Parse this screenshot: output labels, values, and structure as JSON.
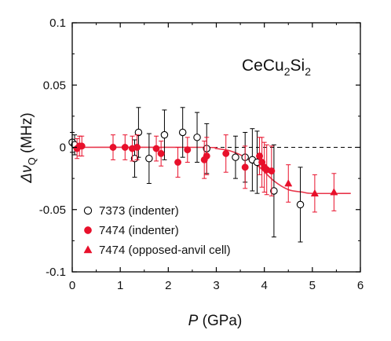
{
  "chart_data": {
    "type": "scatter",
    "title": "CeCu₂Si₂",
    "title_main": "CeCu",
    "title_sub1": "2",
    "title_mid": "Si",
    "title_sub2": "2",
    "xlabel_italic": "P",
    "xlabel_rest": " (GPa)",
    "ylabel_delta": "Δ",
    "ylabel_nu": "ν",
    "ylabel_sub": "Q",
    "ylabel_rest": " (MHz)",
    "xlim": [
      0,
      6
    ],
    "ylim": [
      -0.1,
      0.1
    ],
    "x_ticks": [
      0,
      1,
      2,
      3,
      4,
      5,
      6
    ],
    "y_ticks": [
      -0.1,
      -0.05,
      0,
      0.05,
      0.1
    ],
    "x_tick_labels": [
      "0",
      "1",
      "2",
      "3",
      "4",
      "5",
      "6"
    ],
    "y_tick_labels": [
      "-0.1",
      "-0.05",
      "0",
      "0.05",
      "0.1"
    ],
    "legend_position": "bottom-left",
    "reference_line": {
      "y": 0,
      "style": "dashed",
      "color": "#000000"
    },
    "fit_curve": {
      "color": "#e8354a",
      "points": [
        [
          0,
          0
        ],
        [
          2.7,
          0
        ],
        [
          3.0,
          -0.001
        ],
        [
          3.3,
          -0.003
        ],
        [
          3.6,
          -0.008
        ],
        [
          3.9,
          -0.016
        ],
        [
          4.2,
          -0.027
        ],
        [
          4.5,
          -0.034
        ],
        [
          4.8,
          -0.036
        ],
        [
          5.0,
          -0.037
        ],
        [
          5.8,
          -0.037
        ]
      ]
    },
    "series": [
      {
        "name": "7373 (indenter)",
        "marker": "circle-open",
        "color": "#000000",
        "points": [
          {
            "x": 0.0,
            "y": 0.004,
            "err": 0.008
          },
          {
            "x": 0.05,
            "y": 0.002,
            "err": 0.008
          },
          {
            "x": 1.3,
            "y": -0.009,
            "err": 0.015
          },
          {
            "x": 1.38,
            "y": 0.012,
            "err": 0.02
          },
          {
            "x": 1.6,
            "y": -0.009,
            "err": 0.02
          },
          {
            "x": 1.92,
            "y": 0.01,
            "err": 0.02
          },
          {
            "x": 2.3,
            "y": 0.012,
            "err": 0.02
          },
          {
            "x": 2.6,
            "y": 0.008,
            "err": 0.02
          },
          {
            "x": 2.8,
            "y": -0.001,
            "err": 0.02
          },
          {
            "x": 3.4,
            "y": -0.008,
            "err": 0.017
          },
          {
            "x": 3.6,
            "y": -0.008,
            "err": 0.02
          },
          {
            "x": 3.75,
            "y": -0.01,
            "err": 0.025
          },
          {
            "x": 3.85,
            "y": -0.012,
            "err": 0.025
          },
          {
            "x": 4.2,
            "y": -0.035,
            "err": 0.037
          },
          {
            "x": 4.75,
            "y": -0.046,
            "err": 0.03
          }
        ]
      },
      {
        "name": "7474 (indenter)",
        "marker": "circle-filled",
        "color": "#e8102b",
        "points": [
          {
            "x": 0.1,
            "y": -0.001,
            "err": 0.008
          },
          {
            "x": 0.15,
            "y": 0.001,
            "err": 0.008
          },
          {
            "x": 0.2,
            "y": 0.001,
            "err": 0.008
          },
          {
            "x": 0.85,
            "y": 0.0,
            "err": 0.01
          },
          {
            "x": 1.1,
            "y": 0.0,
            "err": 0.01
          },
          {
            "x": 1.25,
            "y": -0.001,
            "err": 0.01
          },
          {
            "x": 1.35,
            "y": 0.0,
            "err": 0.01
          },
          {
            "x": 1.75,
            "y": -0.001,
            "err": 0.01
          },
          {
            "x": 1.85,
            "y": -0.005,
            "err": 0.01
          },
          {
            "x": 2.2,
            "y": -0.012,
            "err": 0.012
          },
          {
            "x": 2.4,
            "y": -0.002,
            "err": 0.01
          },
          {
            "x": 2.75,
            "y": -0.01,
            "err": 0.015
          },
          {
            "x": 2.8,
            "y": -0.007,
            "err": 0.015
          },
          {
            "x": 3.2,
            "y": -0.005,
            "err": 0.015
          },
          {
            "x": 3.6,
            "y": -0.016,
            "err": 0.017
          },
          {
            "x": 3.9,
            "y": -0.007,
            "err": 0.015
          },
          {
            "x": 3.95,
            "y": -0.012,
            "err": 0.02
          },
          {
            "x": 4.0,
            "y": -0.016,
            "err": 0.02
          },
          {
            "x": 4.05,
            "y": -0.018,
            "err": 0.02
          },
          {
            "x": 4.15,
            "y": -0.019,
            "err": 0.02
          }
        ]
      },
      {
        "name": "7474 (opposed-anvil cell)",
        "marker": "triangle-filled",
        "color": "#e8102b",
        "points": [
          {
            "x": 4.5,
            "y": -0.029,
            "err": 0.015
          },
          {
            "x": 5.05,
            "y": -0.037,
            "err": 0.015
          },
          {
            "x": 5.45,
            "y": -0.036,
            "err": 0.015
          }
        ]
      }
    ]
  }
}
